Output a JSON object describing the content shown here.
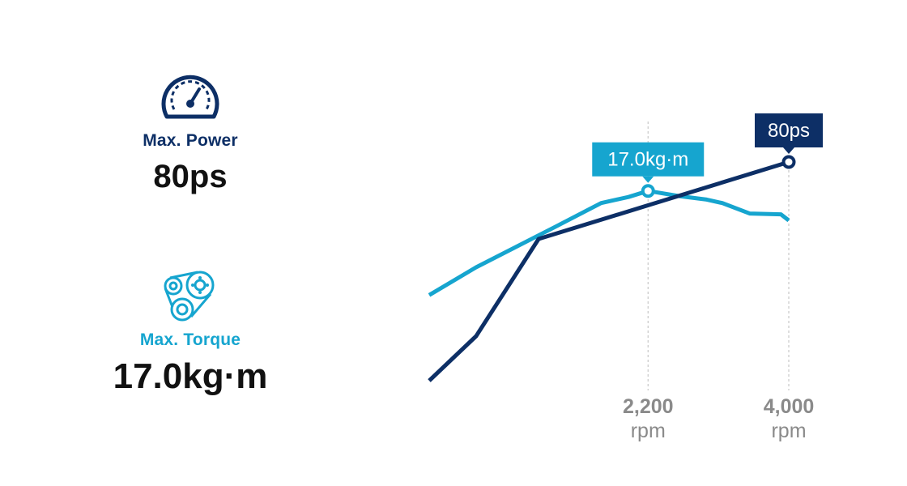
{
  "specs": {
    "power": {
      "label": "Max. Power",
      "value": "80ps",
      "icon": "speedometer-icon",
      "color": "#0d2f66"
    },
    "torque": {
      "label": "Max. Torque",
      "value": "17.0kg·m",
      "icon": "belt-pulley-icon",
      "color": "#16a5cf"
    }
  },
  "chart_data": {
    "type": "line",
    "title": "",
    "xlabel": "",
    "ylabel": "",
    "x_ticks": [
      {
        "value": 2200,
        "label": "2,200",
        "unit": "rpm"
      },
      {
        "value": 4000,
        "label": "4,000",
        "unit": "rpm"
      }
    ],
    "xlim": [
      -600,
      4000
    ],
    "grid": false,
    "series": [
      {
        "name": "17.0kg·m",
        "color": "#16a5cf",
        "ylim": [
          0,
          28
        ],
        "x": [
          -600,
          0,
          1000,
          1600,
          1950,
          2200,
          2600,
          2950,
          3150,
          3500,
          3900,
          4000
        ],
        "y": [
          11,
          12.6,
          14.9,
          16.3,
          16.65,
          17.0,
          16.7,
          16.5,
          16.3,
          15.7,
          15.65,
          15.3
        ],
        "peak": {
          "x": 2200,
          "y": 17.0,
          "label": "17.0kg·m"
        }
      },
      {
        "name": "80ps",
        "color": "#0d2f66",
        "ylim": [
          0,
          120
        ],
        "x": [
          -600,
          0,
          800,
          4000
        ],
        "y": [
          26,
          37,
          61,
          80
        ],
        "peak": {
          "x": 4000,
          "y": 80,
          "label": "80ps"
        }
      }
    ]
  }
}
